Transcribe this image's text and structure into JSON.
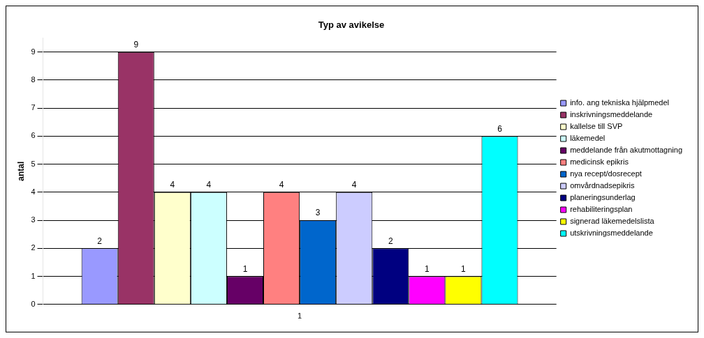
{
  "chart_data": {
    "type": "bar",
    "title": "Typ av avikelse",
    "ylabel": "antal",
    "categories": [
      "1"
    ],
    "series": [
      {
        "name": "info. ang tekniska hjälpmedel",
        "color": "#9999ff",
        "values": [
          2
        ]
      },
      {
        "name": "inskrivningsmeddelande",
        "color": "#993366",
        "values": [
          9
        ]
      },
      {
        "name": "kallelse till SVP",
        "color": "#ffffcc",
        "values": [
          4
        ]
      },
      {
        "name": "läkemedel",
        "color": "#ccffff",
        "values": [
          4
        ]
      },
      {
        "name": "meddelande från akutmottagning",
        "color": "#660066",
        "values": [
          1
        ]
      },
      {
        "name": "medicinsk epikris",
        "color": "#ff8080",
        "values": [
          4
        ]
      },
      {
        "name": "nya recept/dosrecept",
        "color": "#0066cc",
        "values": [
          3
        ]
      },
      {
        "name": "omvårdnadsepikris",
        "color": "#ccccff",
        "values": [
          4
        ]
      },
      {
        "name": "planeringsunderlag",
        "color": "#000080",
        "values": [
          2
        ]
      },
      {
        "name": "rehabiliteringsplan",
        "color": "#ff00ff",
        "values": [
          1
        ]
      },
      {
        "name": "signerad läkemedelslista",
        "color": "#ffff00",
        "values": [
          1
        ]
      },
      {
        "name": "utskrivningsmeddelande",
        "color": "#00ffff",
        "values": [
          6
        ]
      }
    ],
    "ylim": [
      0,
      9.5
    ],
    "yticks": [
      0,
      1,
      2,
      3,
      4,
      5,
      6,
      7,
      8,
      9
    ],
    "grid": "y",
    "legend": "right",
    "data_labels": true
  }
}
